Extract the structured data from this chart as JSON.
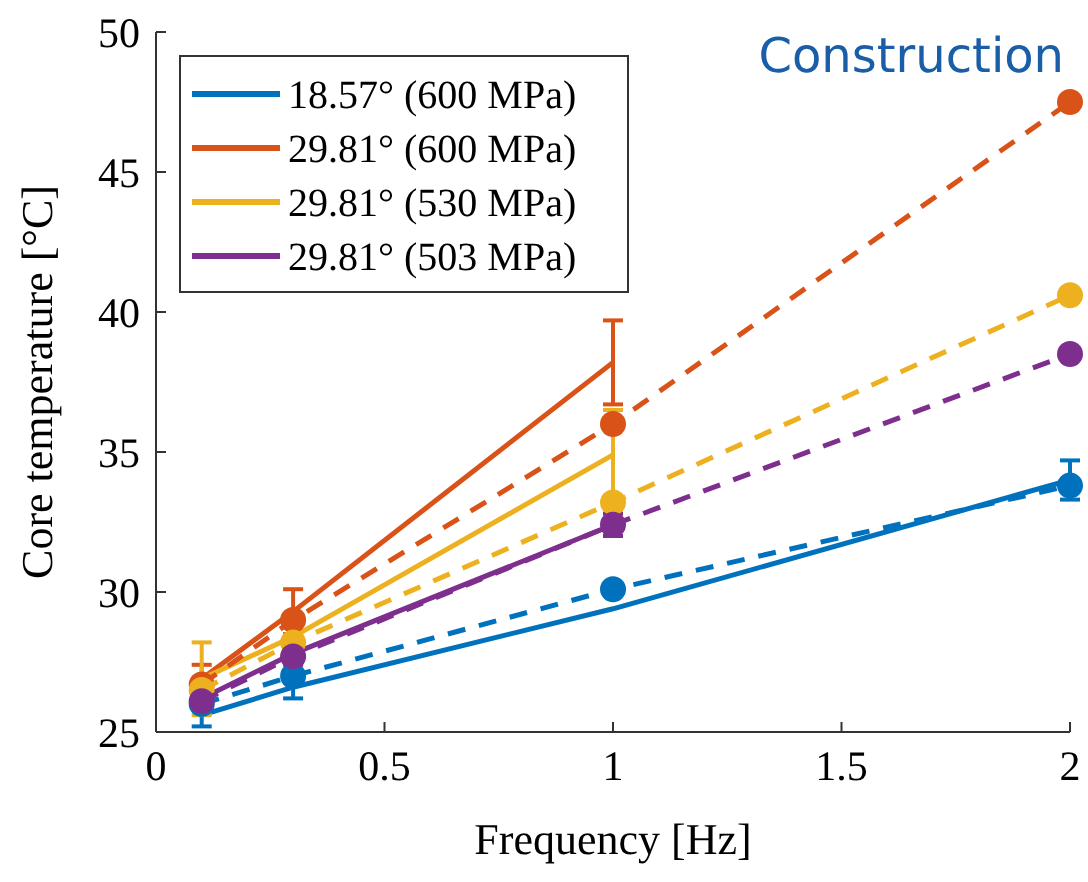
{
  "chart_data": {
    "type": "line",
    "xlabel": "Frequency [Hz]",
    "ylabel": "Core temperature [°C]",
    "annotations": [
      "Construction"
    ],
    "xlim": [
      0,
      2
    ],
    "xticks": [
      0,
      0.5,
      1,
      1.5,
      2
    ],
    "ylim": [
      25,
      50
    ],
    "yticks": [
      25,
      30,
      35,
      40,
      45,
      50
    ],
    "grid": false,
    "legend": "top left",
    "series": [
      {
        "name": "18.57° (600 MPa)",
        "color": "#0072bd",
        "x": [
          0.1,
          0.3,
          1,
          2
        ],
        "values": [
          25.6,
          26.6,
          29.4,
          34.0
        ],
        "errors": [
          0.4,
          0.4,
          null,
          0.7
        ],
        "line_style": "solid",
        "marker": "none"
      },
      {
        "name": "29.81° (600 MPa)",
        "color": "#d95319",
        "x": [
          0.1,
          0.3,
          1
        ],
        "values": [
          26.9,
          29.3,
          38.2
        ],
        "errors": [
          0.5,
          0.8,
          1.5
        ],
        "line_style": "solid",
        "marker": "none"
      },
      {
        "name": "29.81° (530 MPa)",
        "color": "#edb120",
        "x": [
          0.1,
          0.3,
          1
        ],
        "values": [
          26.9,
          28.4,
          34.9
        ],
        "errors": [
          1.3,
          null,
          1.6
        ],
        "line_style": "solid",
        "marker": "none"
      },
      {
        "name": "29.81° (503 MPa)",
        "color": "#7e2f8e",
        "x": [
          0.1,
          0.3,
          1
        ],
        "values": [
          26.2,
          27.8,
          32.4
        ],
        "errors": [
          0.4,
          0.4,
          0.4
        ],
        "line_style": "solid",
        "marker": "none"
      },
      {
        "color": "#0072bd",
        "x": [
          0.1,
          0.3,
          1,
          2
        ],
        "values": [
          26.0,
          27.0,
          30.1,
          33.8
        ],
        "line_style": "dashed",
        "marker": "circle"
      },
      {
        "color": "#d95319",
        "x": [
          0.1,
          0.3,
          1,
          2
        ],
        "values": [
          26.7,
          29.0,
          36.0,
          47.5
        ],
        "line_style": "dashed",
        "marker": "circle"
      },
      {
        "color": "#edb120",
        "x": [
          0.1,
          0.3,
          1,
          2
        ],
        "values": [
          26.5,
          28.2,
          33.2,
          40.6
        ],
        "line_style": "dashed",
        "marker": "circle"
      },
      {
        "color": "#7e2f8e",
        "x": [
          0.1,
          0.3,
          1,
          2
        ],
        "values": [
          26.1,
          27.7,
          32.4,
          38.5
        ],
        "line_style": "dashed",
        "marker": "circle"
      }
    ]
  }
}
